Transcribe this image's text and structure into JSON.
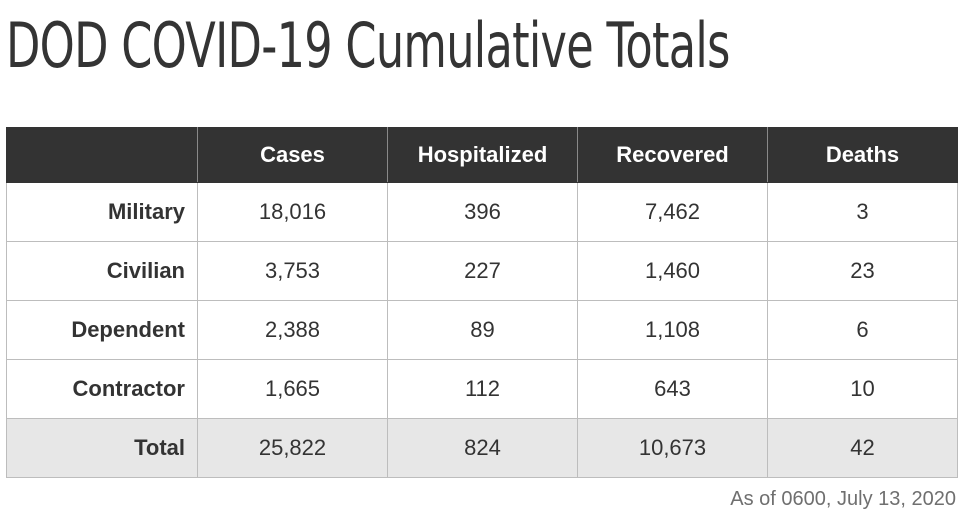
{
  "title": "DOD COVID-19 Cumulative Totals",
  "footnote": "As of 0600, July 13, 2020",
  "colors": {
    "header_bg": "#333333",
    "header_text": "#ffffff",
    "total_row_bg": "#e7e7e7",
    "border": "#bdbdbd"
  },
  "chart_data": {
    "type": "table",
    "title": "DOD COVID-19 Cumulative Totals",
    "columns": [
      "",
      "Cases",
      "Hospitalized",
      "Recovered",
      "Deaths"
    ],
    "rows": [
      {
        "label": "Military",
        "values": [
          "18,016",
          "396",
          "7,462",
          "3"
        ]
      },
      {
        "label": "Civilian",
        "values": [
          "3,753",
          "227",
          "1,460",
          "23"
        ]
      },
      {
        "label": "Dependent",
        "values": [
          "2,388",
          "89",
          "1,108",
          "6"
        ]
      },
      {
        "label": "Contractor",
        "values": [
          "1,665",
          "112",
          "643",
          "10"
        ]
      },
      {
        "label": "Total",
        "values": [
          "25,822",
          "824",
          "10,673",
          "42"
        ]
      }
    ],
    "annotation": "As of 0600, July 13, 2020"
  }
}
